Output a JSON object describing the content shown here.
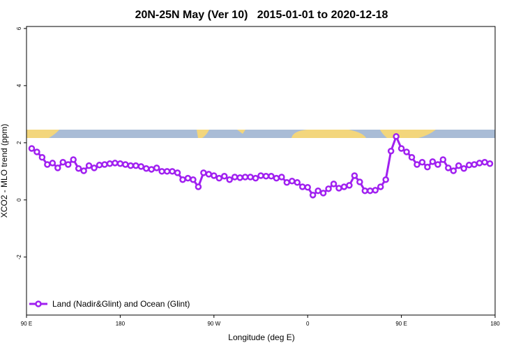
{
  "chart_data": {
    "type": "line",
    "title": "20N-25N May (Ver 10)   2015-01-01 to 2020-12-18",
    "x_label": "Longitude (deg E)",
    "y_label": "XCO2 - MLO trend (ppm)",
    "xlim": [
      90,
      540
    ],
    "xticks": [
      {
        "value": 90,
        "label": "90 E"
      },
      180,
      {
        "value": 270,
        "label": "90 W"
      },
      {
        "value": 360,
        "label": "0"
      },
      {
        "value": 450,
        "label": "90 E"
      },
      {
        "value": 540,
        "label": "180"
      }
    ],
    "ylim": [
      -4.03,
      6.07
    ],
    "yticks": [
      -2,
      0,
      2,
      4,
      6
    ],
    "legend": "bottom-left",
    "x": [
      95,
      100,
      105,
      110,
      115,
      120,
      125,
      130,
      135,
      140,
      145,
      150,
      155,
      160,
      165,
      170,
      175,
      180,
      185,
      190,
      195,
      200,
      205,
      210,
      215,
      220,
      225,
      230,
      235,
      240,
      245,
      250,
      255,
      260,
      265,
      270,
      275,
      280,
      285,
      290,
      295,
      300,
      305,
      310,
      315,
      320,
      325,
      330,
      335,
      340,
      345,
      350,
      355,
      360,
      365,
      370,
      375,
      380,
      385,
      390,
      395,
      400,
      405,
      410,
      415,
      420,
      425,
      430,
      435,
      440,
      445,
      450,
      455,
      460,
      465,
      470,
      475,
      480,
      485,
      490,
      495,
      500,
      505,
      510,
      515,
      520,
      525,
      530,
      535
    ],
    "series": [
      {
        "name": "Land (Nadir&Glint) and Ocean (Glint)",
        "color": "#a020f0",
        "values": [
          1.8,
          1.68,
          1.49,
          1.24,
          1.29,
          1.12,
          1.32,
          1.24,
          1.41,
          1.1,
          1.02,
          1.2,
          1.12,
          1.22,
          1.24,
          1.27,
          1.29,
          1.27,
          1.24,
          1.2,
          1.2,
          1.17,
          1.1,
          1.07,
          1.12,
          1.0,
          1.0,
          1.0,
          0.95,
          0.71,
          0.76,
          0.71,
          0.46,
          0.95,
          0.9,
          0.85,
          0.76,
          0.83,
          0.71,
          0.8,
          0.78,
          0.8,
          0.8,
          0.76,
          0.85,
          0.83,
          0.83,
          0.76,
          0.8,
          0.61,
          0.66,
          0.61,
          0.46,
          0.44,
          0.17,
          0.32,
          0.24,
          0.39,
          0.56,
          0.41,
          0.46,
          0.51,
          0.85,
          0.63,
          0.32,
          0.32,
          0.34,
          0.46,
          0.71,
          1.71,
          2.22,
          1.8,
          1.68,
          1.49,
          1.24,
          1.32,
          1.15,
          1.34,
          1.24,
          1.41,
          1.12,
          1.02,
          1.2,
          1.1,
          1.22,
          1.24,
          1.29,
          1.32,
          1.27
        ]
      }
    ]
  }
}
